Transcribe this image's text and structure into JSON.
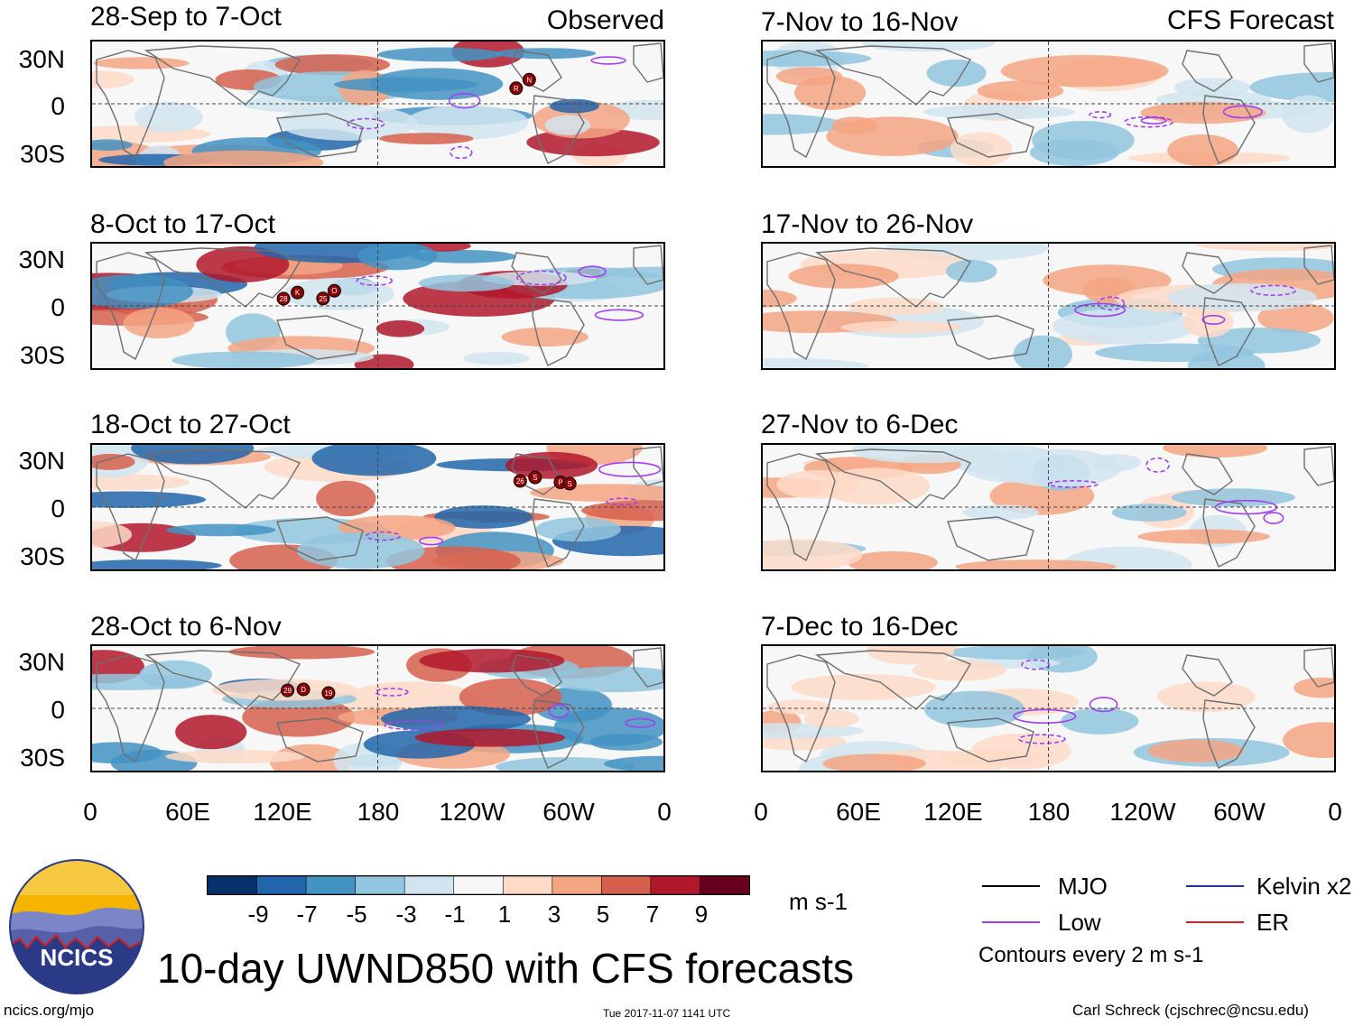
{
  "columns": {
    "left_tag": "Observed",
    "right_tag": "CFS Forecast"
  },
  "y_ticks": [
    "30N",
    "0",
    "30S"
  ],
  "x_ticks": [
    "0",
    "60E",
    "120E",
    "180",
    "120W",
    "60W",
    "0"
  ],
  "panels_left": [
    {
      "title": "28-Sep to 7-Oct",
      "storms": [
        "R",
        "N"
      ]
    },
    {
      "title": "8-Oct to 17-Oct",
      "storms": [
        "28",
        "K",
        "25",
        "O"
      ]
    },
    {
      "title": "18-Oct to 27-Oct",
      "storms": [
        "26",
        "S",
        "P",
        "S"
      ]
    },
    {
      "title": "28-Oct to 6-Nov",
      "storms": [
        "29",
        "D",
        "19"
      ]
    }
  ],
  "panels_right": [
    {
      "title": "7-Nov to 16-Nov"
    },
    {
      "title": "17-Nov to 26-Nov"
    },
    {
      "title": "27-Nov to 6-Dec"
    },
    {
      "title": "7-Dec to 16-Dec"
    }
  ],
  "colorbar": {
    "labels": [
      "-9",
      "-7",
      "-5",
      "-3",
      "-1",
      "1",
      "3",
      "5",
      "7",
      "9"
    ],
    "colors": [
      "#08306b",
      "#2166ac",
      "#4393c3",
      "#92c5de",
      "#d1e5f0",
      "#f7f7f7",
      "#fddbc7",
      "#f4a582",
      "#d6604d",
      "#b2182b",
      "#67001f"
    ],
    "units": "m s-1"
  },
  "legend": {
    "mjo": "MJO",
    "kelvin": "Kelvin x2",
    "low": "Low",
    "er": "ER",
    "contours": "Contours every 2 m s-1",
    "colors": {
      "mjo": "#000000",
      "kelvin": "#2a2acc",
      "low": "#a040f0",
      "er": "#e02020"
    }
  },
  "title": "10-day UWND850 with CFS forecasts",
  "logo_text": "NCICS",
  "footer": {
    "url": "ncics.org/mjo",
    "timestamp": "Tue 2017-11-07 1141 UTC",
    "author": "Carl Schreck (cjschrec@ncsu.edu)"
  }
}
